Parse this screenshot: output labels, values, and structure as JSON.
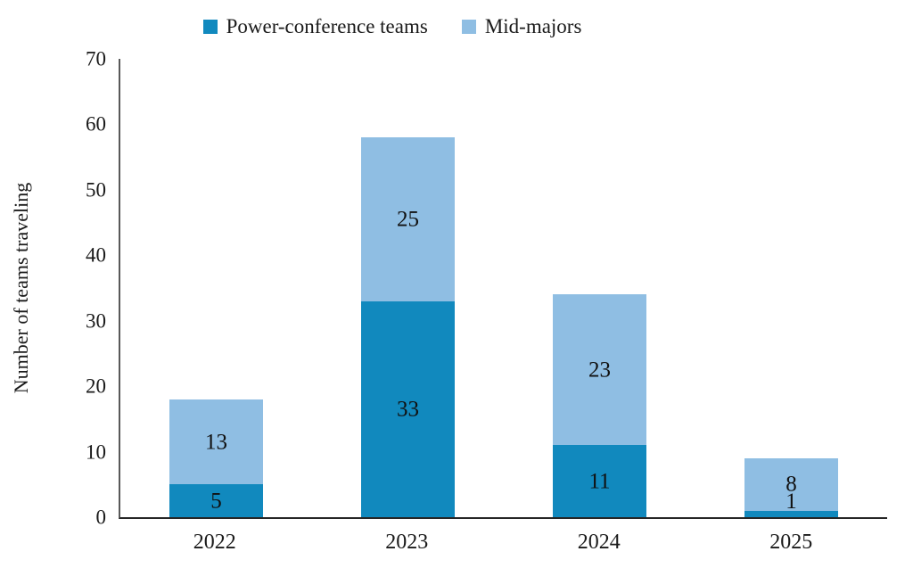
{
  "chart_data": {
    "type": "bar",
    "stacked": true,
    "title": "",
    "categories": [
      "2022",
      "2023",
      "2024",
      "2025"
    ],
    "series": [
      {
        "name": "Power-conference teams",
        "color": "#1189BE",
        "values": [
          5,
          33,
          11,
          1
        ]
      },
      {
        "name": "Mid-majors",
        "color": "#8FBEE3",
        "values": [
          13,
          25,
          23,
          8
        ]
      }
    ],
    "totals": [
      18,
      58,
      34,
      9
    ],
    "xlabel": "",
    "ylabel": "Number of teams traveling",
    "ylim": [
      0,
      70
    ],
    "yticks": [
      0,
      10,
      20,
      30,
      40,
      50,
      60,
      70
    ],
    "grid": false,
    "legend_position": "top",
    "axis_color_left": "#595959",
    "axis_color_bottom": "#262626"
  }
}
